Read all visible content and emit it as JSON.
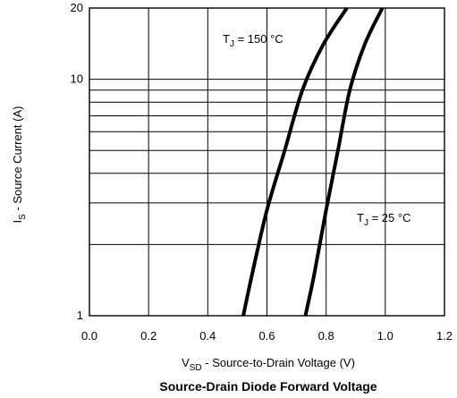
{
  "chart_data": {
    "type": "line",
    "title": "Source-Drain Diode Forward Voltage",
    "xlabel": {
      "prefix": "V",
      "subscript": "SD",
      "suffix": " - Source-to-Drain Voltage (V)"
    },
    "ylabel": {
      "prefix": "I",
      "subscript": "S",
      "suffix": " - Source Current (A)"
    },
    "xlim": [
      0.0,
      1.2
    ],
    "ylim": [
      1,
      20
    ],
    "yscale": "log",
    "grid": true,
    "x_ticks": [
      "0.0",
      "0.2",
      "0.4",
      "0.6",
      "0.8",
      "1.0",
      "1.2"
    ],
    "y_ticks": [
      "1",
      "10",
      "20"
    ],
    "series": [
      {
        "name": {
          "prefix": "T",
          "subscript": "J",
          "suffix": " = 150 °C"
        },
        "x": [
          0.52,
          0.55,
          0.6,
          0.66,
          0.72,
          0.79,
          0.87
        ],
        "y": [
          1,
          1.5,
          2.8,
          5.0,
          9.0,
          14.0,
          20.0
        ]
      },
      {
        "name": {
          "prefix": "T",
          "subscript": "J",
          "suffix": " = 25 °C"
        },
        "x": [
          0.73,
          0.76,
          0.8,
          0.84,
          0.88,
          0.93,
          0.99
        ],
        "y": [
          1,
          1.5,
          2.8,
          5.0,
          9.0,
          14.0,
          20.0
        ]
      }
    ],
    "line_color": "#000000"
  }
}
